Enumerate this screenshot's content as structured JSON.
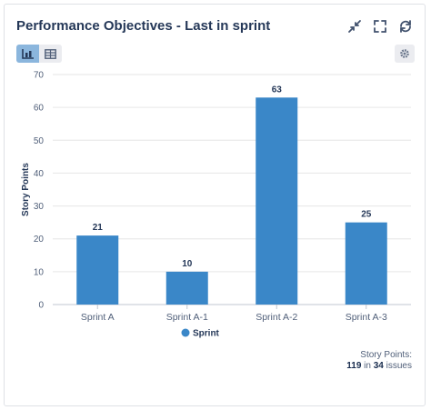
{
  "header": {
    "title": "Performance Objectives - Last in sprint",
    "icons": [
      "collapse-icon",
      "fullscreen-icon",
      "refresh-icon"
    ]
  },
  "toolbar": {
    "views": [
      "bar-chart-icon",
      "table-icon"
    ],
    "active_view": "bar-chart-icon",
    "settings_icon": "gear-icon"
  },
  "footer": {
    "label": "Story Points:",
    "points": "119",
    "in_text": " in ",
    "issues": "34",
    "issues_text": " issues"
  },
  "colors": {
    "bar": "#3a87c8",
    "accent": "#8bb6dd"
  },
  "chart_data": {
    "type": "bar",
    "title": "",
    "xlabel": "",
    "ylabel": "Story Points",
    "categories": [
      "Sprint A",
      "Sprint A-1",
      "Sprint A-2",
      "Sprint A-3"
    ],
    "series": [
      {
        "name": "Sprint",
        "values": [
          21,
          10,
          63,
          25
        ]
      }
    ],
    "ylim": [
      0,
      70
    ],
    "yticks": [
      0,
      10,
      20,
      30,
      40,
      50,
      60,
      70
    ],
    "data_labels": true,
    "grid": true,
    "legend": "bottom-center"
  }
}
